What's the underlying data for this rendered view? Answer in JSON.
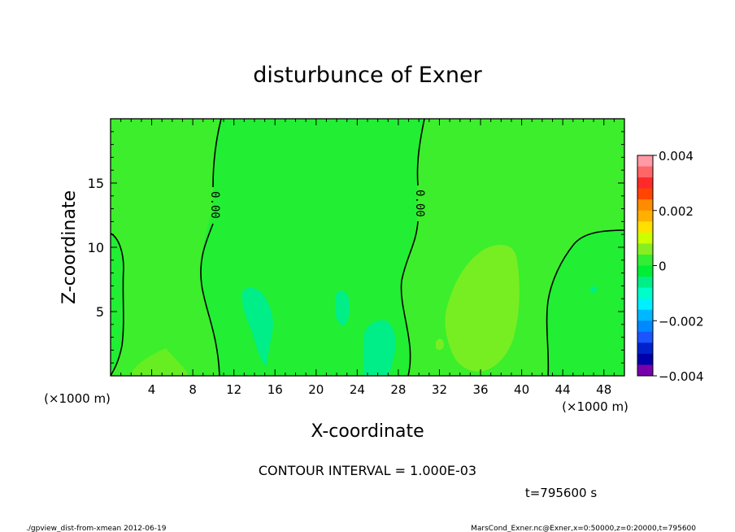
{
  "chart_data": {
    "type": "heatmap",
    "title": "disturbunce of Exner",
    "xlabel": "X-coordinate",
    "ylabel": "Z-coordinate",
    "x_unit_left": "(×1000 m)",
    "x_unit_right": "(×1000 m)",
    "xlim": [
      0,
      50
    ],
    "ylim": [
      0,
      20
    ],
    "xticks": [
      4,
      8,
      12,
      16,
      20,
      24,
      28,
      32,
      36,
      40,
      44,
      48
    ],
    "yticks": [
      5,
      10,
      15
    ],
    "colorbar": {
      "min": -0.004,
      "max": 0.004,
      "tick_values": [
        0.004,
        0.002,
        0,
        -0.002,
        -0.004
      ],
      "tick_labels": [
        "0.004",
        "0.002",
        "0",
        "−0.002",
        "−0.004"
      ],
      "levels_top_to_bottom": [
        "#ff9aa6",
        "#ff6666",
        "#ff2a2a",
        "#ff4500",
        "#ff8c00",
        "#ffb000",
        "#ffe000",
        "#ccff00",
        "#88ee22",
        "#33ee33",
        "#00ee33",
        "#00ee88",
        "#00ffc8",
        "#00f0ff",
        "#00b8ff",
        "#0088ff",
        "#1a55ff",
        "#0022cc",
        "#0000aa",
        "#7700aa"
      ]
    },
    "contour_label": "0.00",
    "contour_interval_text": "CONTOUR INTERVAL = 1.000E-03",
    "time_text": "t=795600 s",
    "footer_left": "./gpview_dist-from-xmean 2012-06-19",
    "footer_right": "MarsCond_Exner.nc@Exner,x=0:50000,z=0:20000,t=795600"
  }
}
